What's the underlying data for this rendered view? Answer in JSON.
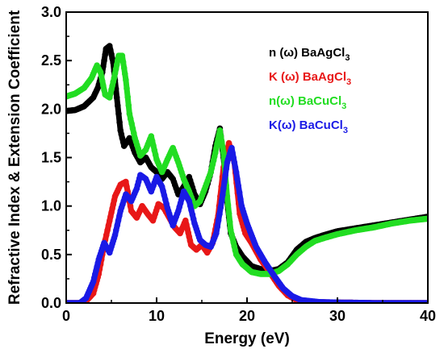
{
  "chart_data": {
    "type": "line",
    "xlabel": "Energy (eV)",
    "ylabel": "Refractive Index & Extension Coefficient",
    "xlim": [
      0,
      40
    ],
    "ylim": [
      0,
      3.0
    ],
    "xticks": [
      0,
      10,
      20,
      30,
      40
    ],
    "yticks": [
      "0.0",
      "0.5",
      "1.0",
      "1.5",
      "2.0",
      "2.5",
      "3.0"
    ],
    "grid": false,
    "legend_position": "top-right",
    "series": [
      {
        "name": "n (ω) BaAgCl",
        "name_sub": "3",
        "color": "#000000",
        "points": [
          [
            0,
            1.98
          ],
          [
            1,
            1.99
          ],
          [
            2,
            2.03
          ],
          [
            3,
            2.12
          ],
          [
            3.5,
            2.22
          ],
          [
            4,
            2.38
          ],
          [
            4.4,
            2.62
          ],
          [
            4.8,
            2.65
          ],
          [
            5.2,
            2.48
          ],
          [
            5.6,
            2.12
          ],
          [
            6,
            1.78
          ],
          [
            6.4,
            1.62
          ],
          [
            7,
            1.7
          ],
          [
            7.6,
            1.55
          ],
          [
            8.2,
            1.45
          ],
          [
            8.8,
            1.5
          ],
          [
            9.4,
            1.4
          ],
          [
            10,
            1.35
          ],
          [
            10.6,
            1.28
          ],
          [
            11.2,
            1.35
          ],
          [
            11.8,
            1.28
          ],
          [
            12.4,
            1.12
          ],
          [
            13,
            1.2
          ],
          [
            13.6,
            1.3
          ],
          [
            14.2,
            1.12
          ],
          [
            14.8,
            1.02
          ],
          [
            15.4,
            1.15
          ],
          [
            16,
            1.35
          ],
          [
            16.5,
            1.62
          ],
          [
            17,
            1.8
          ],
          [
            17.4,
            1.5
          ],
          [
            17.8,
            1.05
          ],
          [
            18.2,
            0.72
          ],
          [
            18.8,
            0.58
          ],
          [
            19.5,
            0.48
          ],
          [
            20.5,
            0.38
          ],
          [
            21.5,
            0.35
          ],
          [
            22.5,
            0.33
          ],
          [
            23.5,
            0.35
          ],
          [
            24.5,
            0.42
          ],
          [
            25.5,
            0.55
          ],
          [
            26.5,
            0.63
          ],
          [
            27.5,
            0.67
          ],
          [
            28.5,
            0.7
          ],
          [
            30,
            0.74
          ],
          [
            32,
            0.77
          ],
          [
            34,
            0.8
          ],
          [
            36,
            0.83
          ],
          [
            38,
            0.86
          ],
          [
            40,
            0.89
          ]
        ]
      },
      {
        "name": "K (ω) BaAgCl",
        "name_sub": "3",
        "color": "#e81818",
        "points": [
          [
            0,
            0
          ],
          [
            1.5,
            0
          ],
          [
            2.2,
            0.02
          ],
          [
            3,
            0.1
          ],
          [
            3.6,
            0.3
          ],
          [
            4.2,
            0.6
          ],
          [
            4.8,
            0.85
          ],
          [
            5.4,
            1.1
          ],
          [
            6,
            1.22
          ],
          [
            6.6,
            1.25
          ],
          [
            7.2,
            0.95
          ],
          [
            7.8,
            0.88
          ],
          [
            8.4,
            1.0
          ],
          [
            9,
            0.92
          ],
          [
            9.6,
            0.85
          ],
          [
            10.2,
            1.02
          ],
          [
            10.8,
            0.98
          ],
          [
            11.4,
            0.88
          ],
          [
            12,
            0.78
          ],
          [
            12.6,
            0.72
          ],
          [
            13.2,
            0.85
          ],
          [
            13.8,
            0.6
          ],
          [
            14.4,
            0.55
          ],
          [
            15,
            0.6
          ],
          [
            15.6,
            0.52
          ],
          [
            16.2,
            0.62
          ],
          [
            16.8,
            0.9
          ],
          [
            17.4,
            1.4
          ],
          [
            18,
            1.65
          ],
          [
            18.6,
            1.45
          ],
          [
            19.2,
            0.92
          ],
          [
            19.8,
            0.72
          ],
          [
            20.5,
            0.62
          ],
          [
            21.5,
            0.45
          ],
          [
            22.5,
            0.32
          ],
          [
            23.5,
            0.18
          ],
          [
            24.5,
            0.08
          ],
          [
            25.5,
            0.03
          ],
          [
            27,
            0.01
          ],
          [
            30,
            0.005
          ],
          [
            34,
            0
          ],
          [
            40,
            0
          ]
        ]
      },
      {
        "name": "n(ω) BaCuCl",
        "name_sub": "3",
        "color": "#22dd22",
        "points": [
          [
            0,
            2.13
          ],
          [
            1,
            2.16
          ],
          [
            2,
            2.22
          ],
          [
            2.8,
            2.32
          ],
          [
            3.4,
            2.45
          ],
          [
            3.8,
            2.38
          ],
          [
            4.3,
            2.15
          ],
          [
            4.8,
            2.12
          ],
          [
            5.3,
            2.32
          ],
          [
            5.8,
            2.55
          ],
          [
            6.2,
            2.55
          ],
          [
            6.6,
            2.3
          ],
          [
            7,
            1.95
          ],
          [
            7.6,
            1.7
          ],
          [
            8.2,
            1.52
          ],
          [
            8.8,
            1.58
          ],
          [
            9.4,
            1.72
          ],
          [
            10,
            1.48
          ],
          [
            10.6,
            1.35
          ],
          [
            11.2,
            1.48
          ],
          [
            11.8,
            1.6
          ],
          [
            12.4,
            1.45
          ],
          [
            13,
            1.28
          ],
          [
            13.6,
            1.15
          ],
          [
            14.2,
            1.0
          ],
          [
            14.8,
            1.05
          ],
          [
            15.4,
            1.2
          ],
          [
            16,
            1.35
          ],
          [
            16.5,
            1.55
          ],
          [
            17,
            1.78
          ],
          [
            17.4,
            1.55
          ],
          [
            17.8,
            1.1
          ],
          [
            18.2,
            0.75
          ],
          [
            18.8,
            0.5
          ],
          [
            19.5,
            0.4
          ],
          [
            20.5,
            0.32
          ],
          [
            21.5,
            0.3
          ],
          [
            22.5,
            0.3
          ],
          [
            23.5,
            0.33
          ],
          [
            24.5,
            0.4
          ],
          [
            25.5,
            0.5
          ],
          [
            26.5,
            0.58
          ],
          [
            27.5,
            0.64
          ],
          [
            28.5,
            0.67
          ],
          [
            30,
            0.71
          ],
          [
            32,
            0.75
          ],
          [
            34,
            0.78
          ],
          [
            36,
            0.82
          ],
          [
            38,
            0.85
          ],
          [
            40,
            0.87
          ]
        ]
      },
      {
        "name": "K(ω) BaCuCl",
        "name_sub": "3",
        "color": "#1a1ae6",
        "points": [
          [
            0,
            0
          ],
          [
            1.5,
            0
          ],
          [
            2.2,
            0.05
          ],
          [
            3,
            0.22
          ],
          [
            3.6,
            0.45
          ],
          [
            4.2,
            0.62
          ],
          [
            4.8,
            0.52
          ],
          [
            5.4,
            0.7
          ],
          [
            6,
            0.95
          ],
          [
            6.6,
            1.12
          ],
          [
            7.2,
            1.05
          ],
          [
            7.8,
            1.18
          ],
          [
            8.2,
            1.32
          ],
          [
            8.8,
            1.28
          ],
          [
            9.4,
            1.15
          ],
          [
            10,
            1.3
          ],
          [
            10.6,
            1.2
          ],
          [
            11.2,
            0.98
          ],
          [
            11.8,
            0.8
          ],
          [
            12.4,
            0.95
          ],
          [
            13,
            1.15
          ],
          [
            13.6,
            1.05
          ],
          [
            14.2,
            0.82
          ],
          [
            14.8,
            0.65
          ],
          [
            15.4,
            0.6
          ],
          [
            16,
            0.58
          ],
          [
            16.6,
            0.72
          ],
          [
            17.2,
            1.05
          ],
          [
            17.8,
            1.45
          ],
          [
            18.3,
            1.6
          ],
          [
            18.8,
            1.35
          ],
          [
            19.4,
            1.0
          ],
          [
            20,
            0.82
          ],
          [
            21,
            0.58
          ],
          [
            22,
            0.42
          ],
          [
            23,
            0.28
          ],
          [
            24,
            0.15
          ],
          [
            25,
            0.07
          ],
          [
            26,
            0.03
          ],
          [
            27,
            0.02
          ],
          [
            28,
            0.01
          ],
          [
            30,
            0.005
          ],
          [
            34,
            0
          ],
          [
            40,
            0
          ]
        ]
      }
    ]
  }
}
